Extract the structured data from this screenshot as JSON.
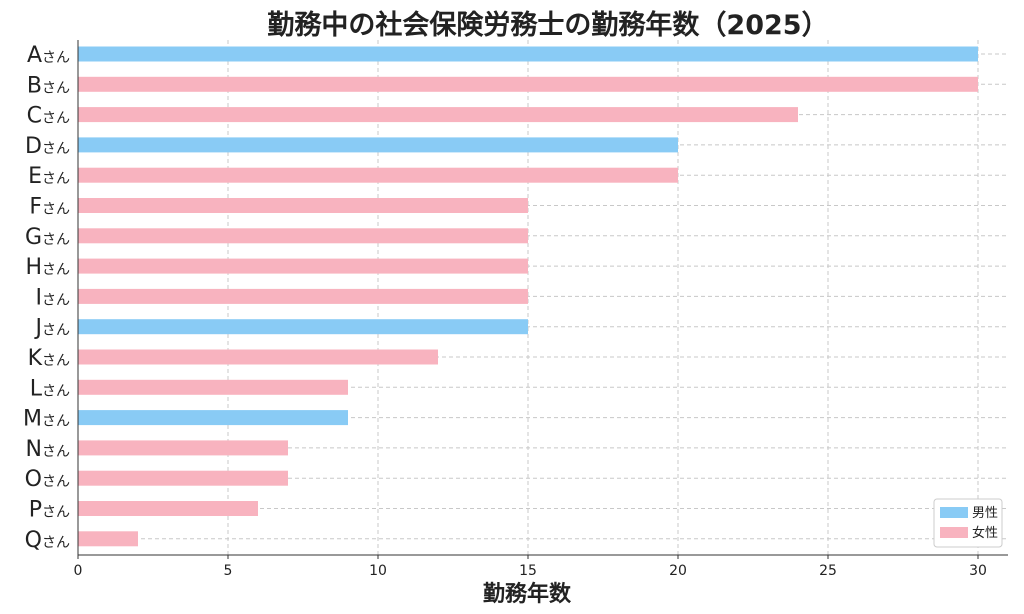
{
  "chart_data": {
    "type": "bar",
    "orientation": "horizontal",
    "title": "勤務中の社会保険労務士の勤務年数（2025）",
    "xlabel": "勤務年数",
    "ylabel": "",
    "xlim": [
      0,
      31
    ],
    "xticks": [
      0,
      5,
      10,
      15,
      20,
      25,
      30
    ],
    "grid": true,
    "category_suffix": "さん",
    "categories": [
      "A",
      "B",
      "C",
      "D",
      "E",
      "F",
      "G",
      "H",
      "I",
      "J",
      "K",
      "L",
      "M",
      "N",
      "O",
      "P",
      "Q"
    ],
    "values": [
      30,
      30,
      24,
      20,
      20,
      15,
      15,
      15,
      15,
      15,
      12,
      9,
      9,
      7,
      7,
      6,
      2
    ],
    "groups": [
      "男性",
      "女性",
      "女性",
      "男性",
      "女性",
      "女性",
      "女性",
      "女性",
      "女性",
      "男性",
      "女性",
      "女性",
      "男性",
      "女性",
      "女性",
      "女性",
      "女性"
    ],
    "legend": {
      "position": "bottom-right",
      "entries": [
        {
          "label": "男性",
          "color": "#89cbf5"
        },
        {
          "label": "女性",
          "color": "#f8b3bf"
        }
      ]
    }
  }
}
